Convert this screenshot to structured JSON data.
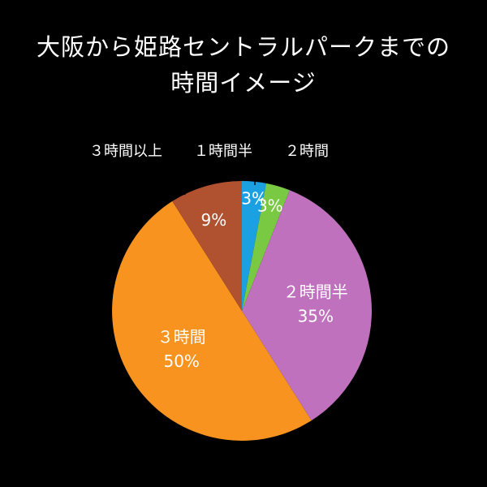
{
  "title_lines": [
    "大阪から姫路セントラルパークまでの",
    "時間イメージ"
  ],
  "chart_data": {
    "type": "pie",
    "title": "大阪から姫路セントラルパークまでの時間イメージ",
    "start_angle_deg": 0,
    "direction": "clockwise",
    "slices": [
      {
        "label": "１時間半",
        "value": 3,
        "value_label": "3%",
        "color": "#1ba1e2"
      },
      {
        "label": "２時間",
        "value": 3,
        "value_label": "3%",
        "color": "#7ac943"
      },
      {
        "label": "２時間半",
        "value": 35,
        "value_label": "35%",
        "color": "#c071bd"
      },
      {
        "label": "３時間",
        "value": 50,
        "value_label": "50%",
        "color": "#f7931e"
      },
      {
        "label": "３時間以上",
        "value": 9,
        "value_label": "9%",
        "color": "#b0512f"
      }
    ]
  }
}
